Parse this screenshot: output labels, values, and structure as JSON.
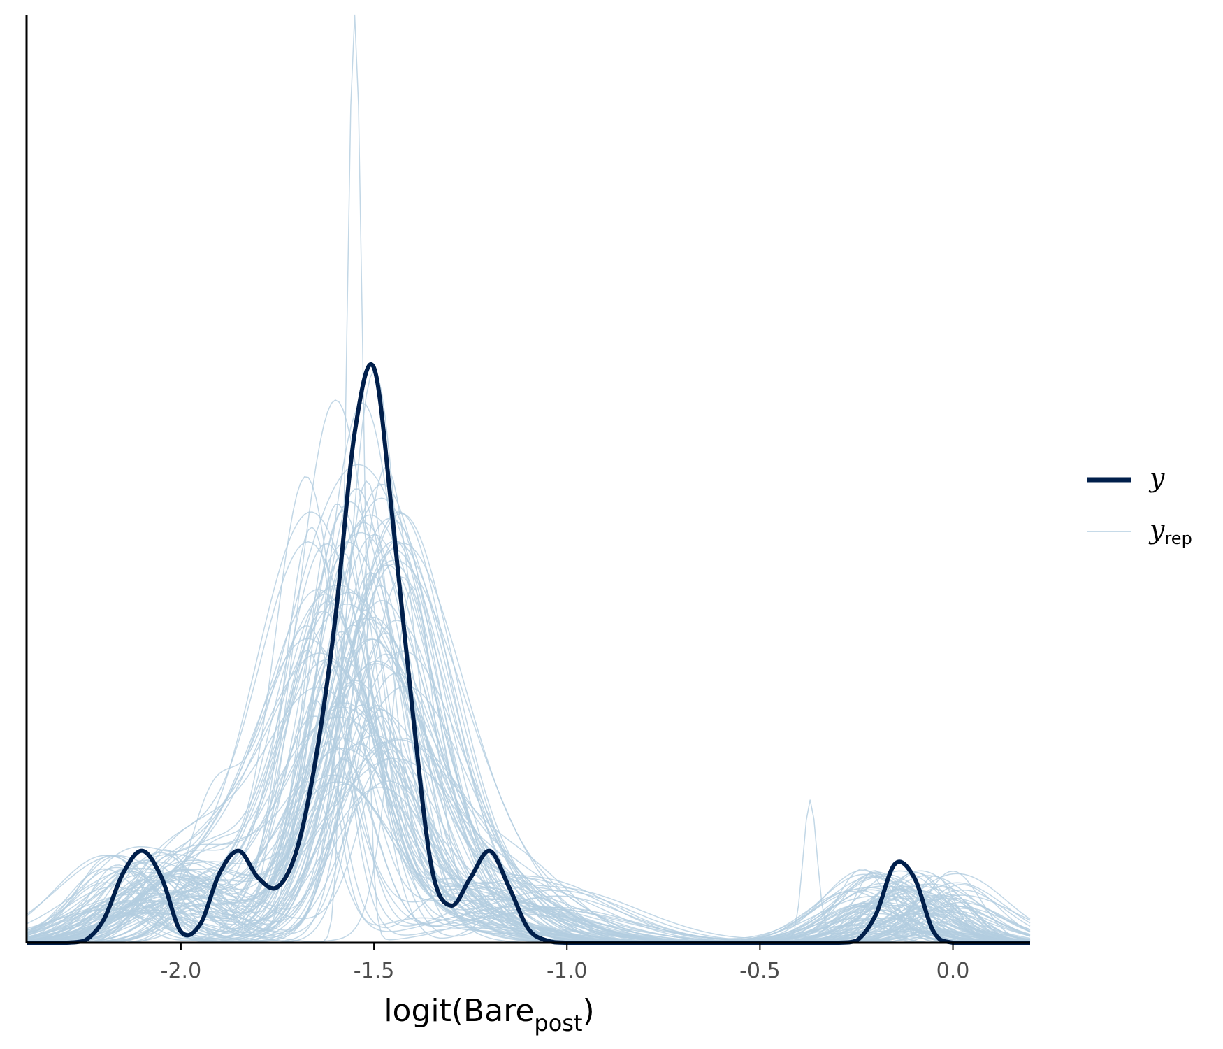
{
  "chart_data": {
    "type": "line",
    "title": "",
    "xlabel": "logit(Bare",
    "xlabel_subscript": "post",
    "xlabel_suffix": ")",
    "ylabel": "",
    "xlim": [
      -2.4,
      0.2
    ],
    "ylim": [
      0,
      1.0
    ],
    "x_ticks": [
      -2.0,
      -1.5,
      -1.0,
      -0.5,
      0.0
    ],
    "x_tick_labels": [
      "-2.0",
      "-1.5",
      "-1.0",
      "-0.5",
      "0.0"
    ],
    "y_axis_ticks_shown": false,
    "grid": false,
    "legend": {
      "placement": "right",
      "entries": [
        {
          "label": "y",
          "subscript": "",
          "color": "#011f4b",
          "style": "thick"
        },
        {
          "label": "y",
          "subscript": "rep",
          "color": "#b3cde0",
          "style": "thin"
        }
      ]
    },
    "series": [
      {
        "name": "y",
        "color": "#011f4b",
        "x": [
          -2.4,
          -2.35,
          -2.3,
          -2.25,
          -2.2,
          -2.15,
          -2.1,
          -2.05,
          -2.0,
          -1.95,
          -1.9,
          -1.85,
          -1.8,
          -1.75,
          -1.7,
          -1.65,
          -1.6,
          -1.55,
          -1.5,
          -1.45,
          -1.4,
          -1.35,
          -1.3,
          -1.25,
          -1.2,
          -1.15,
          -1.1,
          -1.05,
          -1.0,
          -0.9,
          -0.8,
          -0.7,
          -0.6,
          -0.5,
          -0.4,
          -0.3,
          -0.25,
          -0.2,
          -0.15,
          -0.1,
          -0.05,
          0.0,
          0.1,
          0.2
        ],
        "y": [
          0.0,
          0.0,
          0.0,
          0.002,
          0.025,
          0.075,
          0.099,
          0.07,
          0.012,
          0.02,
          0.075,
          0.099,
          0.07,
          0.06,
          0.1,
          0.2,
          0.35,
          0.55,
          0.62,
          0.45,
          0.25,
          0.08,
          0.04,
          0.07,
          0.099,
          0.06,
          0.015,
          0.002,
          0.0,
          0.0,
          0.0,
          0.0,
          0.0,
          0.0,
          0.0,
          0.0,
          0.002,
          0.03,
          0.085,
          0.07,
          0.012,
          0.0,
          0.0,
          0.0
        ]
      }
    ],
    "rep_series": {
      "name": "y_rep",
      "color": "#b3cde0",
      "count": 100,
      "peak_x": [
        -1.55,
        -1.6,
        -1.53,
        -1.47,
        -1.52,
        -1.4,
        -1.65,
        -1.58,
        -1.5,
        -1.62
      ],
      "peak_y": [
        1.0,
        0.58,
        0.58,
        0.5,
        0.48,
        0.36,
        0.26,
        0.42,
        0.6,
        0.3
      ]
    }
  }
}
